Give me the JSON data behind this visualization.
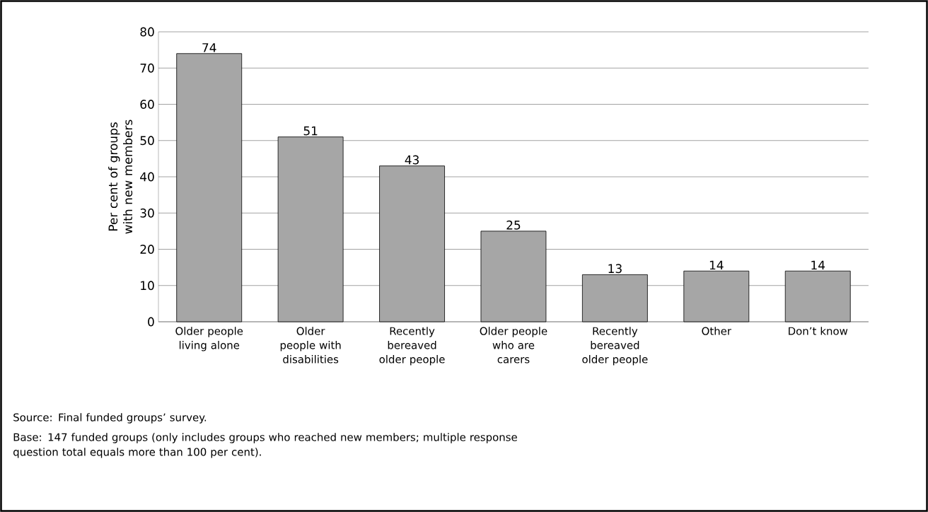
{
  "chart_data": {
    "type": "bar",
    "ylabel": "Per cent of groups with new members",
    "categories": [
      "Older people living alone",
      "Older people with disabilities",
      "Recently bereaved older people",
      "Older people who are carers",
      "Recently bereaved older people",
      "Other",
      "Don’t know"
    ],
    "values": [
      74,
      51,
      43,
      25,
      13,
      14,
      14
    ],
    "color": "#a6a6a6",
    "ylim": [
      0,
      80
    ],
    "yticks": [
      0,
      10,
      20,
      30,
      40,
      50,
      60,
      70,
      80
    ],
    "grid": "y",
    "data_labels": true,
    "annotations": [
      "Source: Final funded groups’ survey.",
      "Base: 147 funded groups (only includes groups who reached new members; multiple response question total equals more than 100 per cent)."
    ]
  }
}
